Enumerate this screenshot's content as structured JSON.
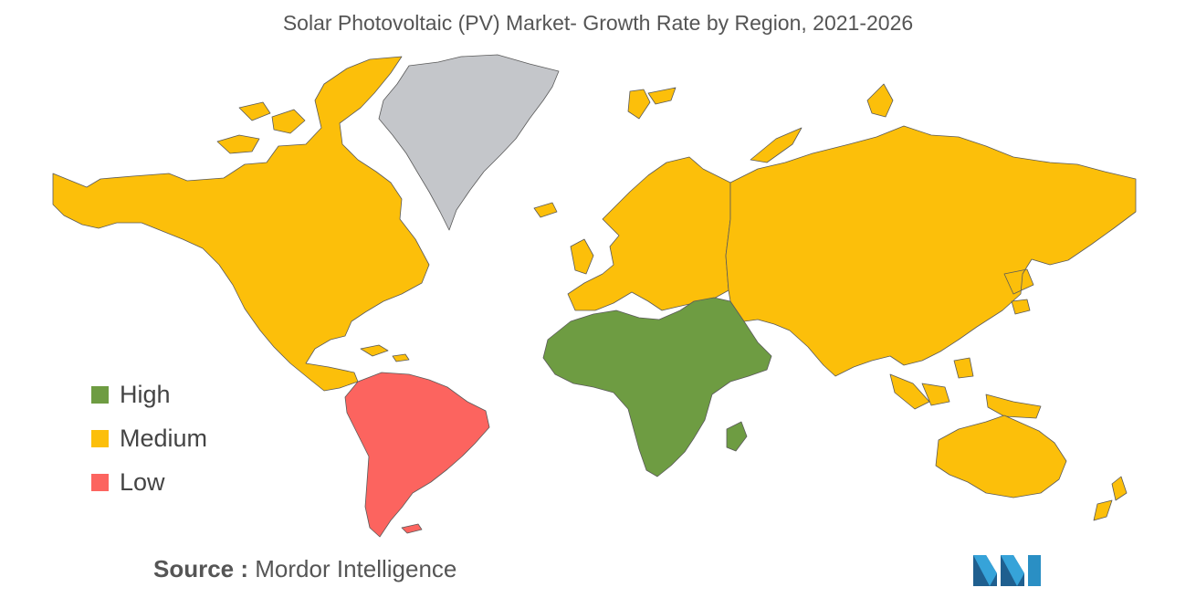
{
  "title": "Solar Photovoltaic (PV) Market- Growth Rate by Region, 2021-2026",
  "legend": [
    {
      "label": "High",
      "color": "#6e9c42"
    },
    {
      "label": "Medium",
      "color": "#fcbf0a"
    },
    {
      "label": "Low",
      "color": "#fc645f"
    }
  ],
  "no_data_color": "#c4c6ca",
  "regions": [
    {
      "name": "North America",
      "category": "Medium"
    },
    {
      "name": "Greenland",
      "category": "No data"
    },
    {
      "name": "South America",
      "category": "Low"
    },
    {
      "name": "Europe",
      "category": "Medium"
    },
    {
      "name": "Middle East and Africa",
      "category": "High"
    },
    {
      "name": "Asia-Pacific",
      "category": "Medium"
    }
  ],
  "source": {
    "label": "Source :",
    "text": "Mordor Intelligence"
  }
}
